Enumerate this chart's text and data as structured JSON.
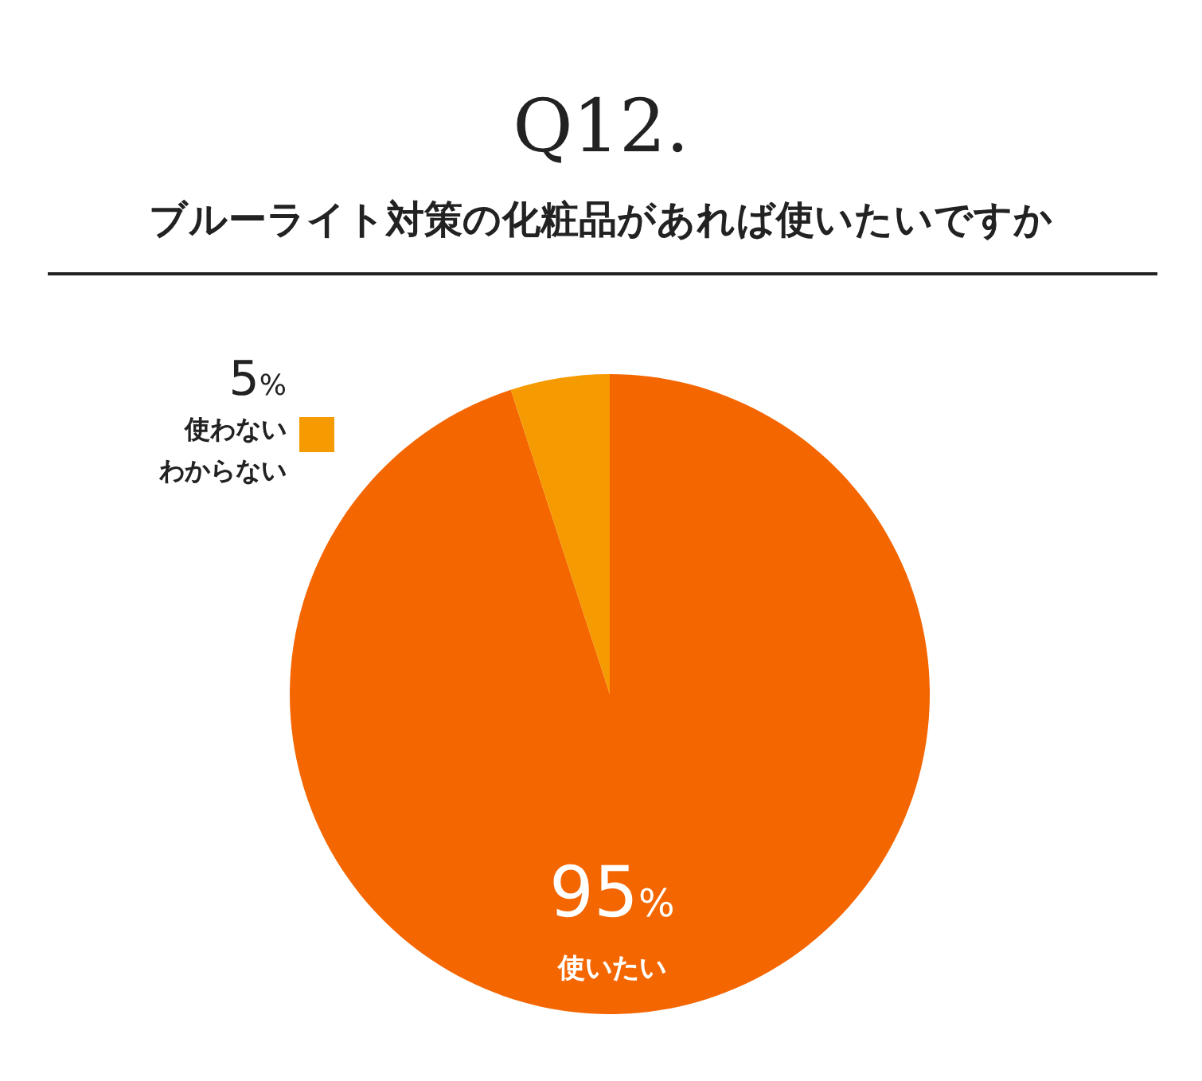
{
  "chart_data": {
    "type": "pie",
    "title": "Q12.",
    "subtitle": "ブルーライト対策の化粧品があれば使いたいですか",
    "categories": [
      "使いたい",
      "使わないわからない"
    ],
    "values": [
      95,
      5
    ],
    "colors": [
      "#f46600",
      "#f59a00"
    ],
    "value_labels": [
      "95%",
      "5%"
    ]
  }
}
